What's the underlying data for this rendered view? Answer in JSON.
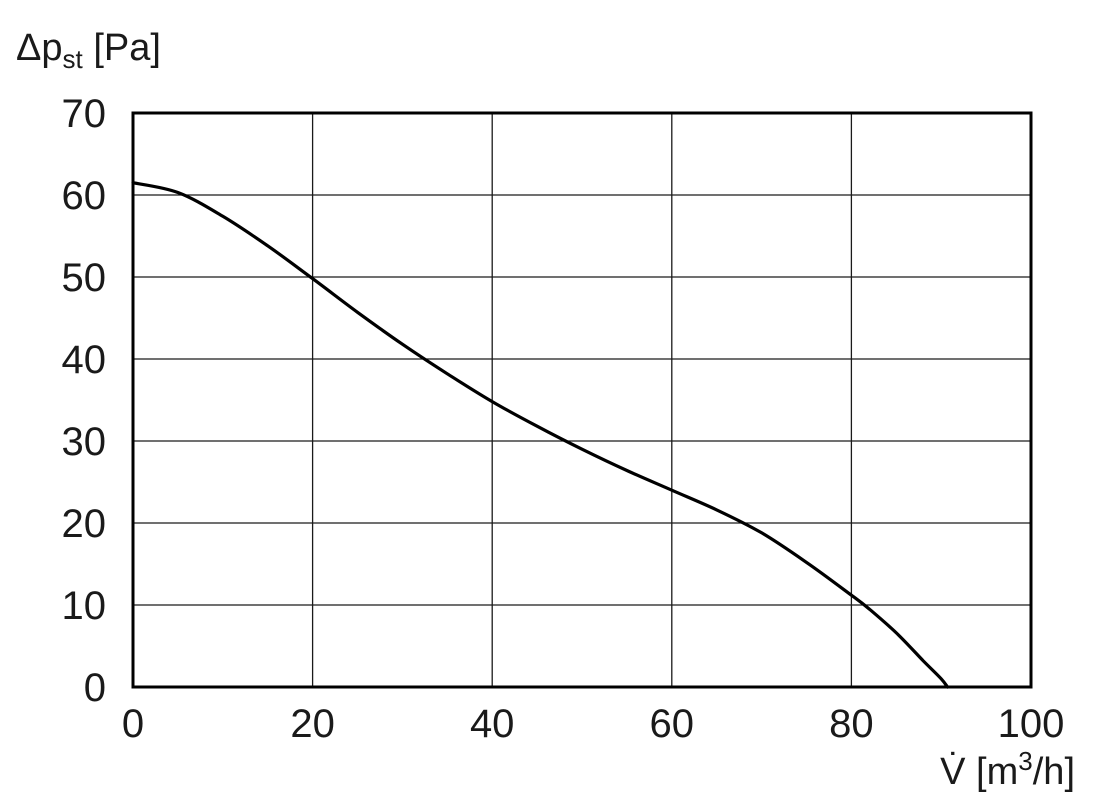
{
  "chart_data": {
    "type": "line",
    "title": "",
    "xlabel": "V̇ [m³/h]",
    "ylabel": "Δpst [Pa]",
    "ylabel_parts": {
      "main": "Δp",
      "sub": "st",
      "unit": " [Pa]"
    },
    "xlabel_parts": {
      "main": "V̇ [m",
      "sup": "3",
      "unit": "/h]"
    },
    "xlim": [
      0,
      100
    ],
    "ylim": [
      0,
      70
    ],
    "xticks": [
      "0",
      "20",
      "40",
      "60",
      "80",
      "100"
    ],
    "yticks": [
      "0",
      "10",
      "20",
      "30",
      "40",
      "50",
      "60",
      "70"
    ],
    "grid": true,
    "line_color": "#000000",
    "grid_color": "#1a1a1a",
    "series": [
      {
        "x": [
          0,
          5,
          10,
          15,
          20,
          25,
          30,
          35,
          40,
          45,
          50,
          55,
          60,
          65,
          70,
          75,
          80,
          82,
          85,
          88,
          90,
          90.7
        ],
        "y": [
          61.5,
          60.3,
          57.4,
          53.8,
          49.8,
          45.7,
          41.8,
          38.2,
          34.8,
          31.8,
          29.0,
          26.4,
          24.0,
          21.6,
          18.8,
          15.2,
          11.2,
          9.5,
          6.6,
          3.2,
          1.0,
          0
        ]
      }
    ]
  }
}
